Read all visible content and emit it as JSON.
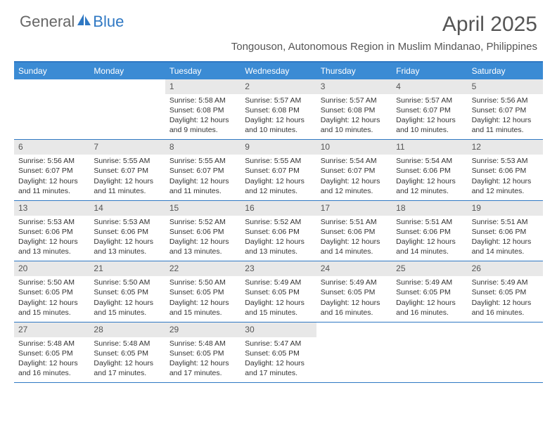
{
  "logo": {
    "text1": "General",
    "text2": "Blue"
  },
  "title": "April 2025",
  "location": "Tongouson, Autonomous Region in Muslim Mindanao, Philippines",
  "colors": {
    "header_bar": "#3b8bd4",
    "rule": "#2f78c3",
    "daynum_bg": "#e8e8e8",
    "text": "#333333",
    "title_text": "#555555"
  },
  "daysOfWeek": [
    "Sunday",
    "Monday",
    "Tuesday",
    "Wednesday",
    "Thursday",
    "Friday",
    "Saturday"
  ],
  "weeks": [
    [
      null,
      null,
      {
        "n": "1",
        "sr": "5:58 AM",
        "ss": "6:08 PM",
        "dl": "12 hours and 9 minutes."
      },
      {
        "n": "2",
        "sr": "5:57 AM",
        "ss": "6:08 PM",
        "dl": "12 hours and 10 minutes."
      },
      {
        "n": "3",
        "sr": "5:57 AM",
        "ss": "6:08 PM",
        "dl": "12 hours and 10 minutes."
      },
      {
        "n": "4",
        "sr": "5:57 AM",
        "ss": "6:07 PM",
        "dl": "12 hours and 10 minutes."
      },
      {
        "n": "5",
        "sr": "5:56 AM",
        "ss": "6:07 PM",
        "dl": "12 hours and 11 minutes."
      }
    ],
    [
      {
        "n": "6",
        "sr": "5:56 AM",
        "ss": "6:07 PM",
        "dl": "12 hours and 11 minutes."
      },
      {
        "n": "7",
        "sr": "5:55 AM",
        "ss": "6:07 PM",
        "dl": "12 hours and 11 minutes."
      },
      {
        "n": "8",
        "sr": "5:55 AM",
        "ss": "6:07 PM",
        "dl": "12 hours and 11 minutes."
      },
      {
        "n": "9",
        "sr": "5:55 AM",
        "ss": "6:07 PM",
        "dl": "12 hours and 12 minutes."
      },
      {
        "n": "10",
        "sr": "5:54 AM",
        "ss": "6:07 PM",
        "dl": "12 hours and 12 minutes."
      },
      {
        "n": "11",
        "sr": "5:54 AM",
        "ss": "6:06 PM",
        "dl": "12 hours and 12 minutes."
      },
      {
        "n": "12",
        "sr": "5:53 AM",
        "ss": "6:06 PM",
        "dl": "12 hours and 12 minutes."
      }
    ],
    [
      {
        "n": "13",
        "sr": "5:53 AM",
        "ss": "6:06 PM",
        "dl": "12 hours and 13 minutes."
      },
      {
        "n": "14",
        "sr": "5:53 AM",
        "ss": "6:06 PM",
        "dl": "12 hours and 13 minutes."
      },
      {
        "n": "15",
        "sr": "5:52 AM",
        "ss": "6:06 PM",
        "dl": "12 hours and 13 minutes."
      },
      {
        "n": "16",
        "sr": "5:52 AM",
        "ss": "6:06 PM",
        "dl": "12 hours and 13 minutes."
      },
      {
        "n": "17",
        "sr": "5:51 AM",
        "ss": "6:06 PM",
        "dl": "12 hours and 14 minutes."
      },
      {
        "n": "18",
        "sr": "5:51 AM",
        "ss": "6:06 PM",
        "dl": "12 hours and 14 minutes."
      },
      {
        "n": "19",
        "sr": "5:51 AM",
        "ss": "6:06 PM",
        "dl": "12 hours and 14 minutes."
      }
    ],
    [
      {
        "n": "20",
        "sr": "5:50 AM",
        "ss": "6:05 PM",
        "dl": "12 hours and 15 minutes."
      },
      {
        "n": "21",
        "sr": "5:50 AM",
        "ss": "6:05 PM",
        "dl": "12 hours and 15 minutes."
      },
      {
        "n": "22",
        "sr": "5:50 AM",
        "ss": "6:05 PM",
        "dl": "12 hours and 15 minutes."
      },
      {
        "n": "23",
        "sr": "5:49 AM",
        "ss": "6:05 PM",
        "dl": "12 hours and 15 minutes."
      },
      {
        "n": "24",
        "sr": "5:49 AM",
        "ss": "6:05 PM",
        "dl": "12 hours and 16 minutes."
      },
      {
        "n": "25",
        "sr": "5:49 AM",
        "ss": "6:05 PM",
        "dl": "12 hours and 16 minutes."
      },
      {
        "n": "26",
        "sr": "5:49 AM",
        "ss": "6:05 PM",
        "dl": "12 hours and 16 minutes."
      }
    ],
    [
      {
        "n": "27",
        "sr": "5:48 AM",
        "ss": "6:05 PM",
        "dl": "12 hours and 16 minutes."
      },
      {
        "n": "28",
        "sr": "5:48 AM",
        "ss": "6:05 PM",
        "dl": "12 hours and 17 minutes."
      },
      {
        "n": "29",
        "sr": "5:48 AM",
        "ss": "6:05 PM",
        "dl": "12 hours and 17 minutes."
      },
      {
        "n": "30",
        "sr": "5:47 AM",
        "ss": "6:05 PM",
        "dl": "12 hours and 17 minutes."
      },
      null,
      null,
      null
    ]
  ],
  "labels": {
    "sunrise": "Sunrise:",
    "sunset": "Sunset:",
    "daylight": "Daylight:"
  }
}
